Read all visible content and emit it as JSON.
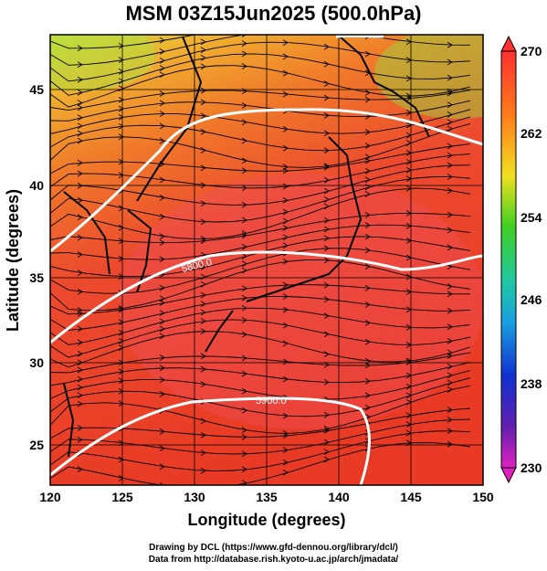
{
  "title": "MSM 03Z15Jun2025 (500.0hPa)",
  "xaxis": {
    "label": "Longitude (degrees)",
    "ticks": [
      "120",
      "125",
      "130",
      "135",
      "140",
      "145",
      "150"
    ]
  },
  "yaxis": {
    "label": "Latitude  (degrees)",
    "ticks": [
      "25",
      "30",
      "35",
      "40",
      "45"
    ]
  },
  "colorbar": {
    "ticks": [
      "270",
      "262",
      "254",
      "246",
      "238",
      "230"
    ]
  },
  "contours": [
    {
      "label": "5800.0"
    },
    {
      "label": "5900.0"
    }
  ],
  "credits": {
    "line1": "Drawing by DCL (https://www.gfd-dennou.org/library/dcl/)",
    "line2": "Data from http://database.rish.kyoto-u.ac.jp/arch/jmadata/"
  },
  "colors": {
    "warm": "#e8452e",
    "hot": "#f0505a",
    "cool": "#d8e838",
    "frame": "#000000"
  }
}
